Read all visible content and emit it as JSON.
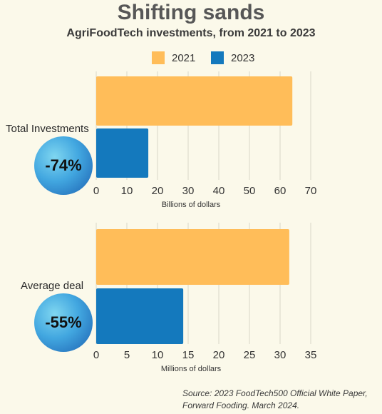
{
  "title": "Shifting sands",
  "subtitle": "AgriFoodTech investments, from 2021 to 2023",
  "legend": [
    {
      "label": "2021",
      "color": "#ffbd59"
    },
    {
      "label": "2023",
      "color": "#1479bd"
    }
  ],
  "chart_data": [
    {
      "type": "bar",
      "orientation": "horizontal",
      "categories": [
        "Total Investments"
      ],
      "series": [
        {
          "name": "2021",
          "values": [
            64
          ]
        },
        {
          "name": "2023",
          "values": [
            17
          ]
        }
      ],
      "xlabel": "Billions of dollars",
      "xlim": [
        0,
        70
      ],
      "xticks": [
        "0",
        "10",
        "20",
        "30",
        "40",
        "50",
        "60",
        "70"
      ],
      "badge": "-74%"
    },
    {
      "type": "bar",
      "orientation": "horizontal",
      "categories": [
        "Average deal"
      ],
      "series": [
        {
          "name": "2021",
          "values": [
            31.5
          ]
        },
        {
          "name": "2023",
          "values": [
            14.2
          ]
        }
      ],
      "xlabel": "Millions of dollars",
      "xlim": [
        0,
        35
      ],
      "xticks": [
        "0",
        "5",
        "10",
        "15",
        "20",
        "25",
        "30",
        "35"
      ],
      "badge": "-55%"
    }
  ],
  "source": "Source: 2023 FoodTech500 Official White Paper, Forward Fooding. March 2024."
}
